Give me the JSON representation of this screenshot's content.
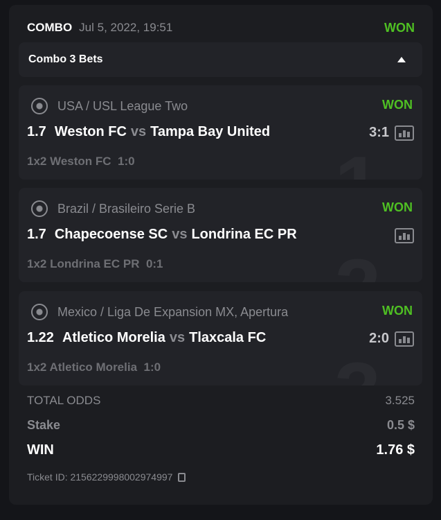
{
  "header": {
    "type": "COMBO",
    "date": "Jul 5, 2022, 19:51",
    "status": "WON"
  },
  "combo": {
    "label": "Combo 3 Bets",
    "expanded": true
  },
  "bets": [
    {
      "index": "1",
      "league": "USA / USL League Two",
      "status": "WON",
      "odds": "1.7",
      "home": "Weston FC",
      "vs": "vs",
      "away": "Tampa Bay United",
      "score": "3:1",
      "pick": "1x2 Weston FC",
      "pick_score": "1:0"
    },
    {
      "index": "2",
      "league": "Brazil / Brasileiro Serie B",
      "status": "WON",
      "odds": "1.7",
      "home": "Chapecoense SC",
      "vs": "vs",
      "away": "Londrina EC PR",
      "score": "",
      "pick": "1x2 Londrina EC PR",
      "pick_score": "0:1"
    },
    {
      "index": "3",
      "league": "Mexico / Liga De Expansion MX, Apertura",
      "status": "WON",
      "odds": "1.22",
      "home": "Atletico Morelia",
      "vs": "vs",
      "away": "Tlaxcala FC",
      "score": "2:0",
      "pick": "1x2 Atletico Morelia",
      "pick_score": "1:0"
    }
  ],
  "summary": {
    "total_odds_label": "TOTAL ODDS",
    "total_odds": "3.525",
    "stake_label": "Stake",
    "stake": "0.5 $",
    "win_label": "WIN",
    "win": "1.76 $",
    "ticket_label": "Ticket ID: 2156229998002974997"
  },
  "colors": {
    "won": "#4fc023",
    "background": "#1c1d21",
    "card": "#222328"
  }
}
